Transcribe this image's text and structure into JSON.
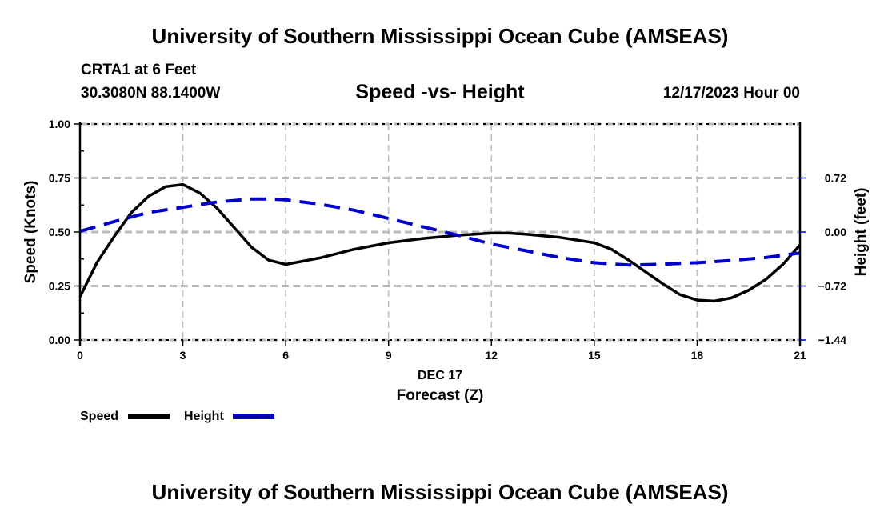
{
  "header": {
    "title_top": "University of Southern Mississippi Ocean Cube (AMSEAS)",
    "station": "CRTA1 at 6 Feet",
    "coords": "30.3080N  88.1400W",
    "plot_title": "Speed -vs- Height",
    "datetime": "12/17/2023 Hour 00",
    "title_bottom": "University of Southern Mississippi Ocean Cube (AMSEAS)"
  },
  "chart_data": {
    "type": "line",
    "title": "Speed -vs- Height",
    "xlabel": "Forecast (Z)",
    "xdate_label": "DEC 17",
    "ylabel": "Speed (Knots)",
    "y2label": "Height (feet)",
    "xlim": [
      0,
      21
    ],
    "ylim": [
      0,
      1.0
    ],
    "y2lim": [
      -1.44,
      1.44
    ],
    "xticks": [
      0,
      3,
      6,
      9,
      12,
      15,
      18,
      21
    ],
    "xtick_labels": [
      "0",
      "3",
      "6",
      "9",
      "12",
      "15",
      "18",
      "21"
    ],
    "yticks": [
      0,
      0.25,
      0.5,
      0.75,
      1.0
    ],
    "ytick_labels": [
      "0.00",
      "0.25",
      "0.50",
      "0.75",
      "1.00"
    ],
    "y2ticks": [
      -1.44,
      -0.72,
      0.0,
      0.72
    ],
    "y2tick_labels": [
      "−1.44",
      "−0.72",
      "0.00",
      "0.72"
    ],
    "grid": true,
    "legend": {
      "placement": "bottom-left",
      "entries": [
        "Speed",
        "Height"
      ]
    },
    "series": [
      {
        "name": "Speed",
        "axis": "left",
        "color": "#000000",
        "style": "solid",
        "x": [
          0,
          0.5,
          1,
          1.5,
          2,
          2.5,
          3,
          3.5,
          4,
          4.5,
          5,
          5.5,
          6,
          7,
          8,
          9,
          10,
          11,
          12,
          12.5,
          13,
          14,
          15,
          15.5,
          16,
          17,
          17.5,
          18,
          18.5,
          19,
          19.5,
          20,
          20.5,
          21
        ],
        "values": [
          0.2,
          0.36,
          0.48,
          0.59,
          0.665,
          0.71,
          0.72,
          0.68,
          0.61,
          0.52,
          0.43,
          0.37,
          0.35,
          0.38,
          0.42,
          0.45,
          0.47,
          0.485,
          0.495,
          0.495,
          0.49,
          0.475,
          0.45,
          0.42,
          0.37,
          0.26,
          0.21,
          0.185,
          0.18,
          0.195,
          0.23,
          0.28,
          0.35,
          0.44
        ]
      },
      {
        "name": "Height",
        "axis": "right",
        "color": "#0000cc",
        "style": "dashed",
        "x": [
          0,
          1,
          2,
          3,
          4,
          5,
          5.5,
          6,
          7,
          8,
          9,
          10,
          11,
          12,
          13,
          14,
          15,
          16,
          17,
          18,
          19,
          20,
          21
        ],
        "values": [
          0.01,
          0.14,
          0.26,
          0.33,
          0.4,
          0.44,
          0.44,
          0.43,
          0.37,
          0.29,
          0.18,
          0.07,
          -0.04,
          -0.16,
          -0.25,
          -0.34,
          -0.41,
          -0.44,
          -0.43,
          -0.41,
          -0.38,
          -0.34,
          -0.28
        ]
      }
    ]
  }
}
